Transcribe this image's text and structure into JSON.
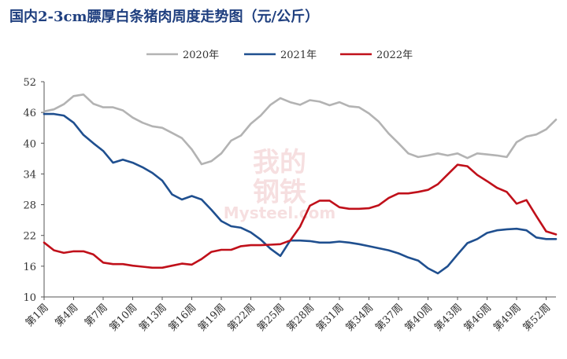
{
  "chart_data": {
    "type": "line",
    "title": "国内2-3cm膘厚白条猪肉周度走势图（元/公斤）",
    "xlabel": "",
    "ylabel": "",
    "ylim": [
      10,
      52
    ],
    "yticks": [
      10,
      16,
      22,
      28,
      34,
      40,
      46,
      52
    ],
    "legend_position": "top",
    "grid": false,
    "x": [
      1,
      2,
      3,
      4,
      5,
      6,
      7,
      8,
      9,
      10,
      11,
      12,
      13,
      14,
      15,
      16,
      17,
      18,
      19,
      20,
      21,
      22,
      23,
      24,
      25,
      26,
      27,
      28,
      29,
      30,
      31,
      32,
      33,
      34,
      35,
      36,
      37,
      38,
      39,
      40,
      41,
      42,
      43,
      44,
      45,
      46,
      47,
      48,
      49,
      50,
      51,
      52,
      53
    ],
    "x_tick_labels": [
      "第1周",
      "第4周",
      "第7周",
      "第10周",
      "第13周",
      "第16周",
      "第19周",
      "第22周",
      "第25周",
      "第28周",
      "第31周",
      "第34周",
      "第37周",
      "第40周",
      "第43周",
      "第46周",
      "第49周",
      "第52周"
    ],
    "x_tick_weeks": [
      1,
      4,
      7,
      10,
      13,
      16,
      19,
      22,
      25,
      28,
      31,
      34,
      37,
      40,
      43,
      46,
      49,
      52
    ],
    "series": [
      {
        "name": "2020年",
        "color": "#b3b3b3",
        "values": [
          46.2,
          46.6,
          47.6,
          49.2,
          49.5,
          47.7,
          47.0,
          47.0,
          46.4,
          45.0,
          44.0,
          43.3,
          43.0,
          42.0,
          41.0,
          38.8,
          35.9,
          36.5,
          38.0,
          40.5,
          41.5,
          43.8,
          45.4,
          47.5,
          48.8,
          48.0,
          47.5,
          48.4,
          48.1,
          47.4,
          48.0,
          47.2,
          47.0,
          45.8,
          44.2,
          41.9,
          40.0,
          38.0,
          37.3,
          37.6,
          38.0,
          37.6,
          38.0,
          37.1,
          38.0,
          37.8,
          37.6,
          37.3,
          40.2,
          41.3,
          41.7,
          42.7,
          44.6
        ]
      },
      {
        "name": "2021年",
        "color": "#1f4f8f",
        "values": [
          45.7,
          45.7,
          45.4,
          44.0,
          41.6,
          40.0,
          38.5,
          36.2,
          36.8,
          36.2,
          35.3,
          34.2,
          32.7,
          30.0,
          29.0,
          29.7,
          29.0,
          27.0,
          24.8,
          23.8,
          23.5,
          22.6,
          21.2,
          19.4,
          18.0,
          21.0,
          21.0,
          20.9,
          20.6,
          20.6,
          20.8,
          20.6,
          20.3,
          19.9,
          19.5,
          19.1,
          18.5,
          17.7,
          17.1,
          15.6,
          14.6,
          16.0,
          18.3,
          20.5,
          21.3,
          22.5,
          23.0,
          23.2,
          23.3,
          23.0,
          21.6,
          21.3,
          21.3
        ]
      },
      {
        "name": "2022年",
        "color": "#c0101a",
        "values": [
          20.6,
          19.1,
          18.6,
          18.9,
          18.9,
          18.3,
          16.7,
          16.4,
          16.4,
          16.1,
          15.9,
          15.7,
          15.7,
          16.1,
          16.5,
          16.3,
          17.4,
          18.8,
          19.2,
          19.2,
          19.9,
          20.1,
          20.1,
          20.2,
          20.3,
          21.0,
          23.7,
          27.8,
          28.8,
          28.8,
          27.5,
          27.2,
          27.2,
          27.3,
          27.9,
          29.3,
          30.2,
          30.2,
          30.5,
          30.9,
          32.0,
          33.9,
          35.8,
          35.5,
          33.8,
          32.6,
          31.3,
          30.5,
          28.2,
          28.9,
          25.8,
          22.8,
          22.2
        ]
      }
    ]
  },
  "watermark": {
    "line1": "我的",
    "line2": "钢铁",
    "line3": "Mysteel.com"
  }
}
